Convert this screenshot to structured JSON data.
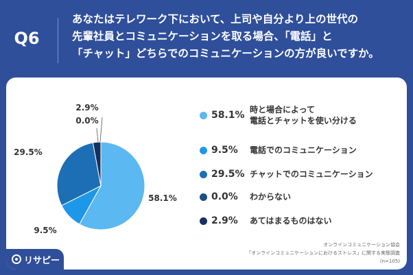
{
  "header": {
    "q_label": "Q6",
    "question_lines": [
      "あなたはテレワーク下において、上司や自分より上の世代の",
      "先輩社員とコミュニケーションを取る場合、「電話」と",
      "「チャット」どちらでのコミュニケーションの方が良いですか。"
    ]
  },
  "chart_data": {
    "type": "pie",
    "start_angle_deg": 0,
    "direction": "clockwise",
    "slices": [
      {
        "label": "時と場合によって\n電話とチャットを使い分ける",
        "value": 58.1,
        "display": "58.1%",
        "color": "#5bb8f0"
      },
      {
        "label": "電話でのコミュニケーション",
        "value": 9.5,
        "display": "9.5%",
        "color": "#1e97e8"
      },
      {
        "label": "チャットでのコミュニケーション",
        "value": 29.5,
        "display": "29.5%",
        "color": "#1d6fb5"
      },
      {
        "label": "わからない",
        "value": 0.0,
        "display": "0.0%",
        "color": "#1b4f86"
      },
      {
        "label": "あてはまるものはない",
        "value": 2.9,
        "display": "2.9%",
        "color": "#16305f"
      }
    ],
    "legend_position": "right"
  },
  "pie_labels": [
    "58.1%",
    "9.5%",
    "29.5%",
    "0.0%",
    "2.9%"
  ],
  "source": {
    "line1": "オンラインコミュニケーション協会",
    "line2": "「オンラインコミュニケーションにおけるストレス」に関する実態調査",
    "line3": "(n=105)"
  },
  "brand": {
    "name": "リサピー"
  }
}
